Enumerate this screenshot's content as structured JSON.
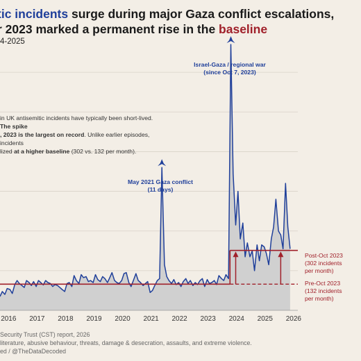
{
  "title": {
    "line1_blue": "tic incidents",
    "line1_rest": " surge during major Gaza conflict escalations,",
    "line2_start": "r 2023 marked a permanent rise in the ",
    "line2_red": "baseline"
  },
  "subtitle": "4-2025",
  "note": {
    "part1": "in UK antisemitic incidents have typically been short-lived. ",
    "bold1": "The spike",
    "part2": ", 2023 is the largest on record",
    "part3": ". Unlike earlier episodes, incidents",
    "part4": "lized ",
    "bold2": "at a higher baseline",
    "part5": " (302 vs. 132 per month)."
  },
  "annotations": {
    "may2021_line1": "May 2021 Gaza conflict",
    "may2021_line2": "(11 days)",
    "oct2023_line1": "Israel-Gaza / regional war",
    "oct2023_line2": "(since Oct 7, 2023)",
    "post_line1": "Post-Oct 2023",
    "post_line2": "(302 incidents",
    "post_line3": "per month)",
    "pre_line1": "Pre-Oct 2023",
    "pre_line2": "(132 incidents",
    "pre_line3": "per month)"
  },
  "footer": {
    "line1": " Security Trust (CST) report, 2026",
    "line2": "literature, abusive behaviour, threats, damage & desecration, assaults, and extreme violence.",
    "line3": "ed / @TheDataDecoded"
  },
  "colors": {
    "line": "#1f3f9a",
    "area": "#d0d0d0",
    "baseline": "#a0202a",
    "grid": "#d8d2c8"
  },
  "chart_data": {
    "type": "area",
    "x_unit": "year",
    "xlim": [
      2015.7,
      2026.15
    ],
    "ylim": [
      0,
      1400
    ],
    "x_ticks": [
      "2016",
      "2017",
      "2018",
      "2019",
      "2020",
      "2021",
      "2022",
      "2023",
      "2024",
      "2025",
      "2026"
    ],
    "y_gridlines": [
      200,
      400,
      600,
      800,
      1000,
      1200
    ],
    "grid": true,
    "series": [
      {
        "values": [
          [
            2015.7,
            70
          ],
          [
            2015.78,
            95
          ],
          [
            2015.87,
            80
          ],
          [
            2015.95,
            110
          ],
          [
            2016.05,
            105
          ],
          [
            2016.13,
            85
          ],
          [
            2016.22,
            130
          ],
          [
            2016.3,
            150
          ],
          [
            2016.38,
            135
          ],
          [
            2016.47,
            125
          ],
          [
            2016.55,
            115
          ],
          [
            2016.63,
            150
          ],
          [
            2016.72,
            140
          ],
          [
            2016.8,
            125
          ],
          [
            2016.88,
            145
          ],
          [
            2016.97,
            120
          ],
          [
            2017.05,
            150
          ],
          [
            2017.13,
            140
          ],
          [
            2017.22,
            128
          ],
          [
            2017.3,
            150
          ],
          [
            2017.38,
            140
          ],
          [
            2017.47,
            135
          ],
          [
            2017.55,
            120
          ],
          [
            2017.63,
            130
          ],
          [
            2017.72,
            125
          ],
          [
            2017.8,
            115
          ],
          [
            2017.88,
            105
          ],
          [
            2017.97,
            95
          ],
          [
            2018.05,
            135
          ],
          [
            2018.13,
            140
          ],
          [
            2018.22,
            120
          ],
          [
            2018.3,
            175
          ],
          [
            2018.38,
            150
          ],
          [
            2018.47,
            135
          ],
          [
            2018.55,
            180
          ],
          [
            2018.63,
            165
          ],
          [
            2018.72,
            170
          ],
          [
            2018.8,
            145
          ],
          [
            2018.88,
            150
          ],
          [
            2018.97,
            140
          ],
          [
            2019.05,
            180
          ],
          [
            2019.13,
            155
          ],
          [
            2019.22,
            145
          ],
          [
            2019.3,
            170
          ],
          [
            2019.38,
            160
          ],
          [
            2019.47,
            140
          ],
          [
            2019.55,
            165
          ],
          [
            2019.63,
            190
          ],
          [
            2019.72,
            150
          ],
          [
            2019.8,
            140
          ],
          [
            2019.88,
            135
          ],
          [
            2019.97,
            150
          ],
          [
            2020.05,
            185
          ],
          [
            2020.13,
            190
          ],
          [
            2020.22,
            140
          ],
          [
            2020.3,
            120
          ],
          [
            2020.38,
            150
          ],
          [
            2020.47,
            185
          ],
          [
            2020.55,
            150
          ],
          [
            2020.63,
            140
          ],
          [
            2020.72,
            125
          ],
          [
            2020.8,
            135
          ],
          [
            2020.88,
            145
          ],
          [
            2020.97,
            90
          ],
          [
            2021.05,
            100
          ],
          [
            2021.13,
            125
          ],
          [
            2021.22,
            150
          ],
          [
            2021.3,
            160
          ],
          [
            2021.38,
            720
          ],
          [
            2021.47,
            230
          ],
          [
            2021.55,
            170
          ],
          [
            2021.63,
            150
          ],
          [
            2021.72,
            135
          ],
          [
            2021.8,
            155
          ],
          [
            2021.88,
            130
          ],
          [
            2021.97,
            140
          ],
          [
            2022.05,
            120
          ],
          [
            2022.13,
            145
          ],
          [
            2022.22,
            160
          ],
          [
            2022.3,
            135
          ],
          [
            2022.38,
            150
          ],
          [
            2022.47,
            125
          ],
          [
            2022.55,
            140
          ],
          [
            2022.63,
            130
          ],
          [
            2022.72,
            150
          ],
          [
            2022.8,
            160
          ],
          [
            2022.88,
            120
          ],
          [
            2022.97,
            155
          ],
          [
            2023.05,
            135
          ],
          [
            2023.13,
            140
          ],
          [
            2023.22,
            150
          ],
          [
            2023.3,
            130
          ],
          [
            2023.38,
            175
          ],
          [
            2023.47,
            160
          ],
          [
            2023.55,
            150
          ],
          [
            2023.63,
            180
          ],
          [
            2023.72,
            160
          ],
          [
            2023.8,
            1340
          ],
          [
            2023.88,
            690
          ],
          [
            2023.97,
            430
          ],
          [
            2024.05,
            600
          ],
          [
            2024.13,
            360
          ],
          [
            2024.22,
            440
          ],
          [
            2024.3,
            270
          ],
          [
            2024.38,
            340
          ],
          [
            2024.47,
            270
          ],
          [
            2024.55,
            300
          ],
          [
            2024.63,
            200
          ],
          [
            2024.72,
            330
          ],
          [
            2024.8,
            250
          ],
          [
            2024.88,
            330
          ],
          [
            2024.97,
            320
          ],
          [
            2025.05,
            285
          ],
          [
            2025.13,
            230
          ],
          [
            2025.22,
            360
          ],
          [
            2025.3,
            420
          ],
          [
            2025.38,
            560
          ],
          [
            2025.47,
            400
          ],
          [
            2025.55,
            380
          ],
          [
            2025.63,
            310
          ],
          [
            2025.72,
            640
          ],
          [
            2025.8,
            420
          ],
          [
            2025.88,
            310
          ]
        ]
      }
    ],
    "baselines": [
      {
        "label": "Pre-Oct 2023",
        "value": 132,
        "x_from": 2015.7,
        "x_to": 2026.15,
        "style": "dashed-after-oct-2023"
      },
      {
        "label": "Post-Oct 2023",
        "value": 302,
        "x_from": 2023.77,
        "x_to": 2026.15,
        "style": "solid"
      }
    ],
    "events": [
      {
        "x": 2021.38,
        "y": 720,
        "label": "May 2021 Gaza conflict (11 days)"
      },
      {
        "x": 2023.8,
        "y": 1340,
        "label": "Israel-Gaza / regional war (since Oct 7, 2023)"
      }
    ],
    "rise_arrows_x": [
      2023.97,
      2025.55
    ]
  }
}
